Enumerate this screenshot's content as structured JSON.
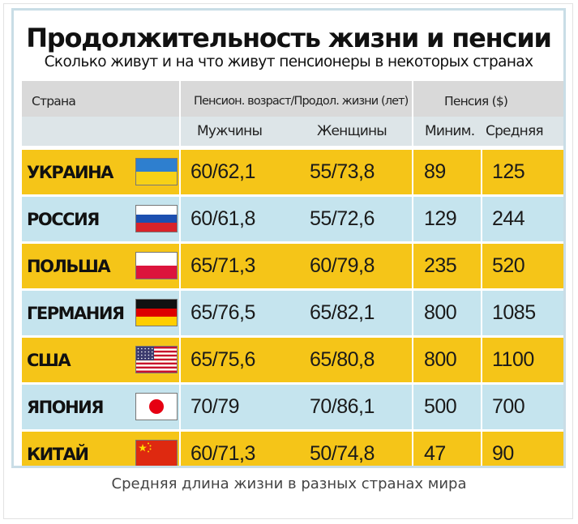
{
  "chart_data": {
    "type": "table",
    "title": "Продолжительность жизни и пенсии",
    "subtitle": "Сколько живут и на что живут пенсионеры в некоторых странах",
    "headers": {
      "country": "Страна",
      "age_group": "Пенсион. возраст/Продол. жизни (лет)",
      "pension_group": "Пенсия ($)",
      "men": "Мужчины",
      "women": "Женщины",
      "min": "Миним.",
      "avg": "Средняя"
    },
    "rows": [
      {
        "country": "УКРАИНА",
        "flag": "ukraine-flag",
        "men": "60/62,1",
        "women": "55/73,8",
        "min": "89",
        "avg": "125"
      },
      {
        "country": "РОССИЯ",
        "flag": "russia-flag",
        "men": "60/61,8",
        "women": "55/72,6",
        "min": "129",
        "avg": "244"
      },
      {
        "country": "ПОЛЬША",
        "flag": "poland-flag",
        "men": "65/71,3",
        "women": "60/79,8",
        "min": "235",
        "avg": "520"
      },
      {
        "country": "ГЕРМАНИЯ",
        "flag": "germany-flag",
        "men": "65/76,5",
        "women": "65/82,1",
        "min": "800",
        "avg": "1085"
      },
      {
        "country": "США",
        "flag": "usa-flag",
        "men": "65/75,6",
        "women": "65/80,8",
        "min": "800",
        "avg": "1100"
      },
      {
        "country": "ЯПОНИЯ",
        "flag": "japan-flag",
        "men": "70/79",
        "women": "70/86,1",
        "min": "500",
        "avg": "700"
      },
      {
        "country": "КИТАЙ",
        "flag": "china-flag",
        "men": "60/71,3",
        "women": "50/74,8",
        "min": "47",
        "avg": "90"
      }
    ],
    "row_colors": [
      "#f5c518",
      "#c5e4ee"
    ]
  },
  "caption": "Средняя длина жизни в разных странах мира"
}
